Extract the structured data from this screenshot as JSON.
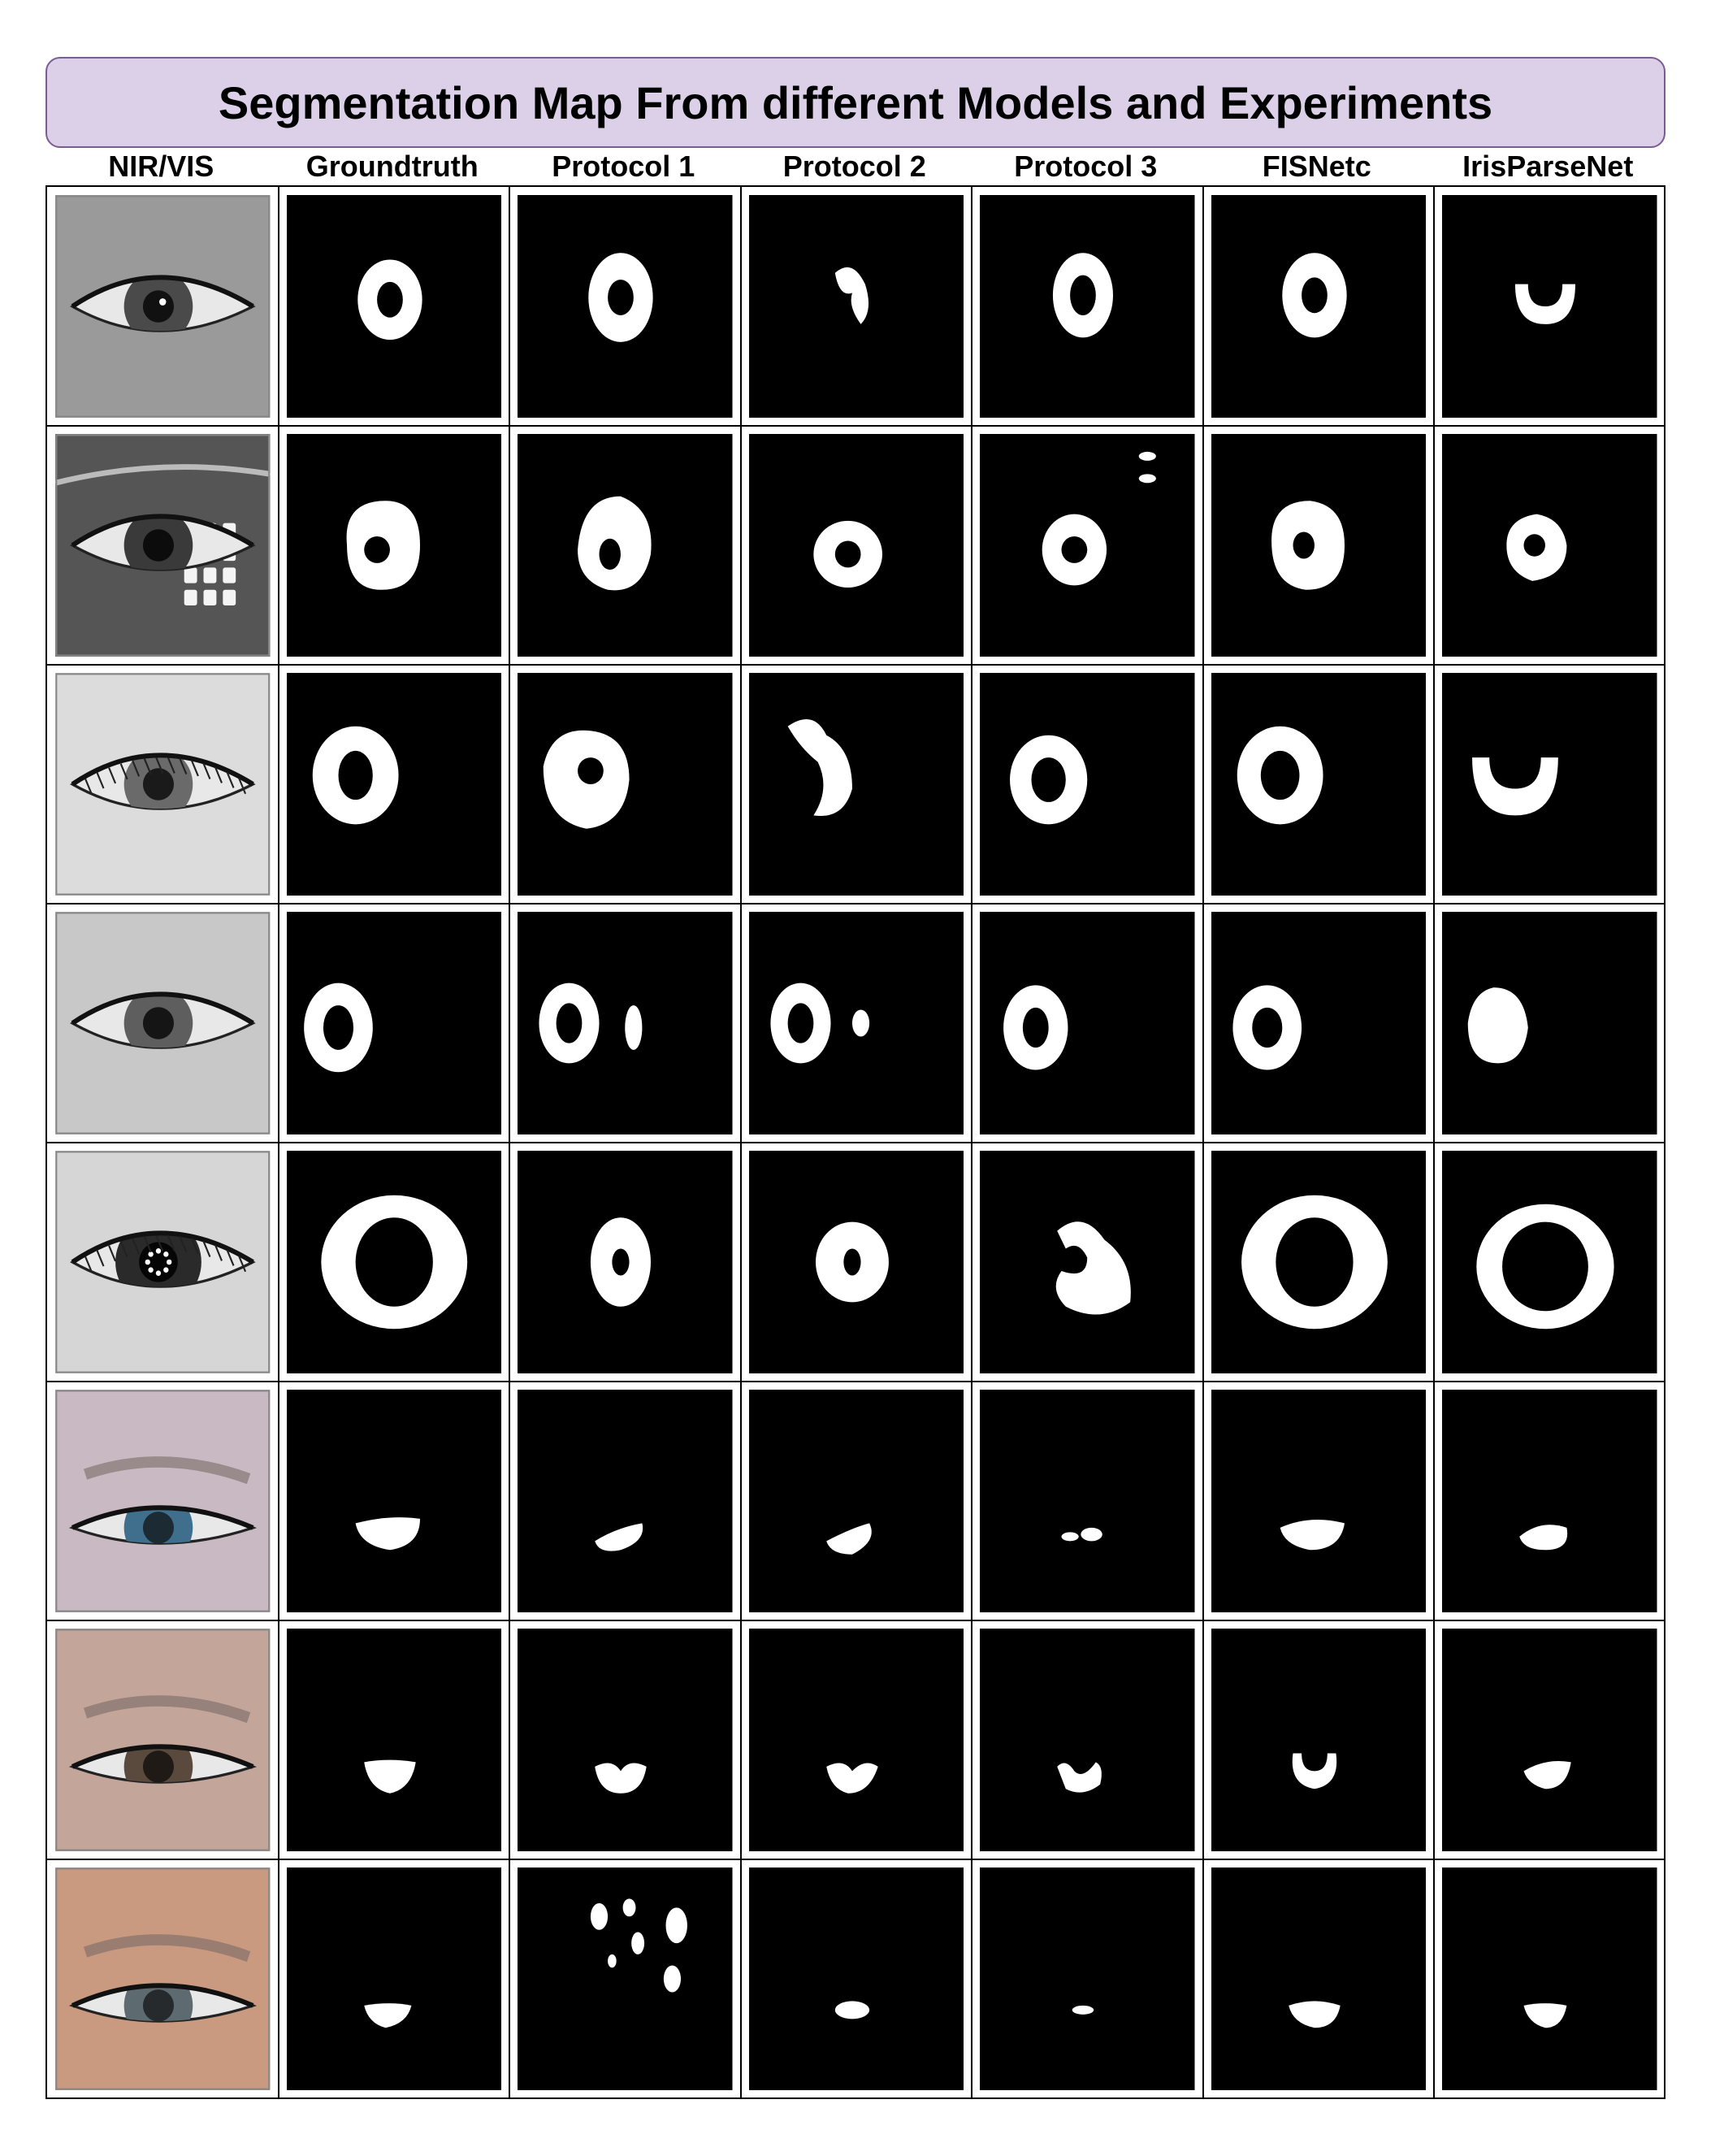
{
  "title": "Segmentation Map From different Models and Experiments",
  "columns": [
    {
      "label": "NIR/VIS"
    },
    {
      "label": "Groundtruth"
    },
    {
      "label": "Protocol 1"
    },
    {
      "label": "Protocol 2"
    },
    {
      "label": "Protocol  3"
    },
    {
      "label": "FISNetc"
    },
    {
      "label": "IrisParseNet"
    }
  ],
  "rows": [
    {
      "modality": "NIR",
      "eye": {
        "skin": "#9a9a9a",
        "iris": "#4a4a4a",
        "pupil": "#111111",
        "glare": true
      }
    },
    {
      "modality": "NIR",
      "eye": {
        "skin": "#555555",
        "iris": "#3a3a3a",
        "pupil": "#0c0c0c",
        "glasses": true
      }
    },
    {
      "modality": "NIR",
      "eye": {
        "skin": "#dcdcdc",
        "iris": "#6a6a6a",
        "pupil": "#1a1a1a",
        "lashes": true
      }
    },
    {
      "modality": "NIR",
      "eye": {
        "skin": "#c8c8c8",
        "iris": "#5e5e5e",
        "pupil": "#151515"
      }
    },
    {
      "modality": "NIR",
      "eye": {
        "skin": "#d6d6d6",
        "iris": "#2a2a2a",
        "pupil": "#050505",
        "ringlights": true,
        "lashes": true
      }
    },
    {
      "modality": "VIS",
      "eye": {
        "skin": "#c9b9c2",
        "iris": "#3f6f8c",
        "pupil": "#1c2a33",
        "closed": true
      }
    },
    {
      "modality": "VIS",
      "eye": {
        "skin": "#c4a59a",
        "iris": "#5a4a3e",
        "pupil": "#1f1a16",
        "closed": true
      }
    },
    {
      "modality": "VIS",
      "eye": {
        "skin": "#c99a80",
        "iris": "#5d6a70",
        "pupil": "#262a2c",
        "closed": true
      }
    }
  ],
  "colors": {
    "banner_bg": "#dcd0e8",
    "banner_border": "#7a5c93",
    "mask_bg": "#000000",
    "mask_fg": "#ffffff"
  }
}
